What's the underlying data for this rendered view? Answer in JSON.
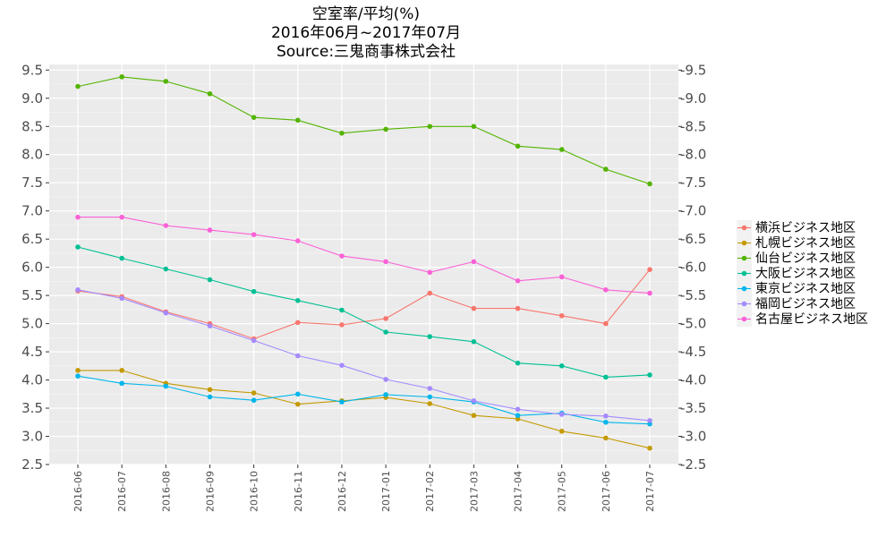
{
  "chart_data": {
    "type": "line",
    "title_lines": [
      "空室率/平均(%)",
      "2016年06月~2017年07月",
      "Source:三鬼商事株式会社"
    ],
    "xlabel": "",
    "ylabel": "",
    "categories": [
      "2016-06",
      "2016-07",
      "2016-08",
      "2016-09",
      "2016-10",
      "2016-11",
      "2016-12",
      "2017-01",
      "2017-02",
      "2017-03",
      "2017-04",
      "2017-05",
      "2017-06",
      "2017-07"
    ],
    "ylim": [
      2.5,
      9.6
    ],
    "yticks": [
      "2.5",
      "3.0",
      "3.5",
      "4.0",
      "4.5",
      "5.0",
      "5.5",
      "6.0",
      "6.5",
      "7.0",
      "7.5",
      "8.0",
      "8.5",
      "9.0",
      "9.5"
    ],
    "yticks_right": [
      "-2.5",
      "-3.0",
      "-3.5",
      "-4.0",
      "-4.5",
      "-5.0",
      "-5.5",
      "-6.0",
      "-6.5",
      "-7.0",
      "-7.5",
      "-8.0",
      "-8.5",
      "-9.0",
      "-9.5"
    ],
    "grid": true,
    "legend_position": "right",
    "series": [
      {
        "name": "横浜ビジネス地区",
        "color": "#F8766D",
        "values": [
          5.58,
          5.48,
          5.21,
          5.0,
          4.73,
          5.02,
          4.98,
          5.09,
          5.54,
          5.27,
          5.27,
          5.14,
          5.0,
          5.96
        ]
      },
      {
        "name": "札幌ビジネス地区",
        "color": "#C49A00",
        "values": [
          4.17,
          4.17,
          3.94,
          3.83,
          3.77,
          3.57,
          3.63,
          3.69,
          3.58,
          3.37,
          3.31,
          3.09,
          2.97,
          2.79
        ]
      },
      {
        "name": "仙台ビジネス地区",
        "color": "#53B400",
        "values": [
          9.21,
          9.38,
          9.3,
          9.08,
          8.66,
          8.61,
          8.38,
          8.45,
          8.5,
          8.5,
          8.15,
          8.09,
          7.74,
          7.48
        ]
      },
      {
        "name": "大阪ビジネス地区",
        "color": "#00C094",
        "values": [
          6.36,
          6.16,
          5.97,
          5.78,
          5.57,
          5.41,
          5.24,
          4.85,
          4.77,
          4.68,
          4.3,
          4.25,
          4.05,
          4.09
        ]
      },
      {
        "name": "東京ビジネス地区",
        "color": "#00B6EB",
        "values": [
          4.07,
          3.94,
          3.89,
          3.7,
          3.64,
          3.75,
          3.61,
          3.74,
          3.7,
          3.61,
          3.37,
          3.41,
          3.25,
          3.22
        ]
      },
      {
        "name": "福岡ビジネス地区",
        "color": "#A58AFF",
        "values": [
          5.6,
          5.45,
          5.19,
          4.96,
          4.7,
          4.43,
          4.26,
          4.01,
          3.85,
          3.63,
          3.48,
          3.39,
          3.36,
          3.28
        ]
      },
      {
        "name": "名古屋ビジネス地区",
        "color": "#FB61D7",
        "values": [
          6.89,
          6.89,
          6.74,
          6.66,
          6.58,
          6.47,
          6.2,
          6.1,
          5.91,
          6.1,
          5.76,
          5.83,
          5.6,
          5.54
        ]
      }
    ]
  }
}
